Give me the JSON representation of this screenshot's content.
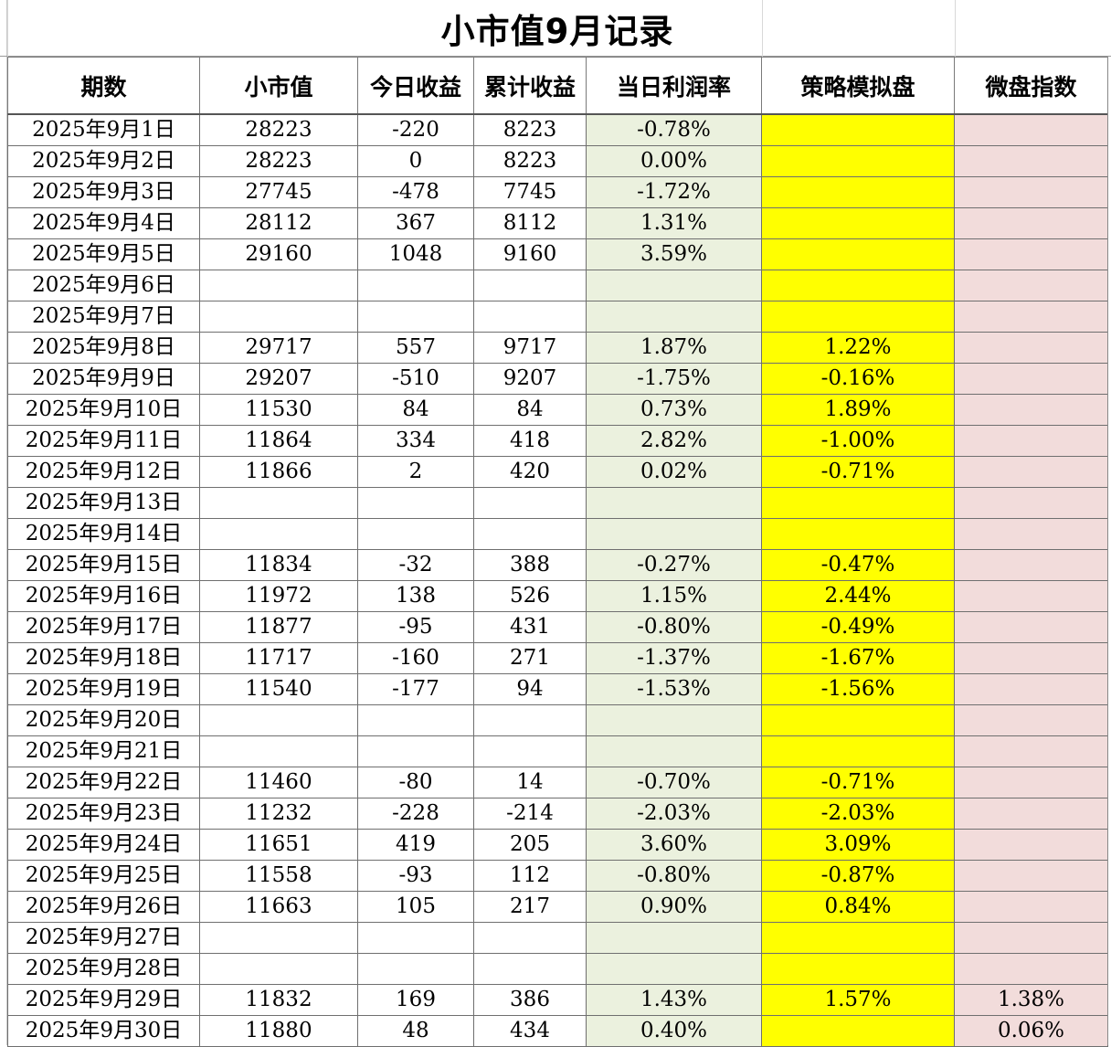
{
  "title": "小市值9月记录",
  "columns": [
    "期数",
    "小市值",
    "今日收益",
    "累计收益",
    "当日利润率",
    "策略模拟盘",
    "微盘指数"
  ],
  "rows": [
    [
      "2025年9月1日",
      "28223",
      "-220",
      "8223",
      "-0.78%",
      "",
      ""
    ],
    [
      "2025年9月2日",
      "28223",
      "0",
      "8223",
      "0.00%",
      "",
      ""
    ],
    [
      "2025年9月3日",
      "27745",
      "-478",
      "7745",
      "-1.72%",
      "",
      ""
    ],
    [
      "2025年9月4日",
      "28112",
      "367",
      "8112",
      "1.31%",
      "",
      ""
    ],
    [
      "2025年9月5日",
      "29160",
      "1048",
      "9160",
      "3.59%",
      "",
      ""
    ],
    [
      "2025年9月6日",
      "",
      "",
      "",
      "",
      "",
      ""
    ],
    [
      "2025年9月7日",
      "",
      "",
      "",
      "",
      "",
      ""
    ],
    [
      "2025年9月8日",
      "29717",
      "557",
      "9717",
      "1.87%",
      "1.22%",
      ""
    ],
    [
      "2025年9月9日",
      "29207",
      "-510",
      "9207",
      "-1.75%",
      "-0.16%",
      ""
    ],
    [
      "2025年9月10日",
      "11530",
      "84",
      "84",
      "0.73%",
      "1.89%",
      ""
    ],
    [
      "2025年9月11日",
      "11864",
      "334",
      "418",
      "2.82%",
      "-1.00%",
      ""
    ],
    [
      "2025年9月12日",
      "11866",
      "2",
      "420",
      "0.02%",
      "-0.71%",
      ""
    ],
    [
      "2025年9月13日",
      "",
      "",
      "",
      "",
      "",
      ""
    ],
    [
      "2025年9月14日",
      "",
      "",
      "",
      "",
      "",
      ""
    ],
    [
      "2025年9月15日",
      "11834",
      "-32",
      "388",
      "-0.27%",
      "-0.47%",
      ""
    ],
    [
      "2025年9月16日",
      "11972",
      "138",
      "526",
      "1.15%",
      "2.44%",
      ""
    ],
    [
      "2025年9月17日",
      "11877",
      "-95",
      "431",
      "-0.80%",
      "-0.49%",
      ""
    ],
    [
      "2025年9月18日",
      "11717",
      "-160",
      "271",
      "-1.37%",
      "-1.67%",
      ""
    ],
    [
      "2025年9月19日",
      "11540",
      "-177",
      "94",
      "-1.53%",
      "-1.56%",
      ""
    ],
    [
      "2025年9月20日",
      "",
      "",
      "",
      "",
      "",
      ""
    ],
    [
      "2025年9月21日",
      "",
      "",
      "",
      "",
      "",
      ""
    ],
    [
      "2025年9月22日",
      "11460",
      "-80",
      "14",
      "-0.70%",
      "-0.71%",
      ""
    ],
    [
      "2025年9月23日",
      "11232",
      "-228",
      "-214",
      "-2.03%",
      "-2.03%",
      ""
    ],
    [
      "2025年9月24日",
      "11651",
      "419",
      "205",
      "3.60%",
      "3.09%",
      ""
    ],
    [
      "2025年9月25日",
      "11558",
      "-93",
      "112",
      "-0.80%",
      "-0.87%",
      ""
    ],
    [
      "2025年9月26日",
      "11663",
      "105",
      "217",
      "0.90%",
      "0.84%",
      ""
    ],
    [
      "2025年9月27日",
      "",
      "",
      "",
      "",
      "",
      ""
    ],
    [
      "2025年9月28日",
      "",
      "",
      "",
      "",
      "",
      ""
    ],
    [
      "2025年9月29日",
      "11832",
      "169",
      "386",
      "1.43%",
      "1.57%",
      "1.38%"
    ],
    [
      "2025年9月30日",
      "11880",
      "48",
      "434",
      "0.40%",
      "",
      "0.06%"
    ]
  ],
  "colors": {
    "rate_fill": "#ebf1de",
    "sim_fill": "#ffff00",
    "micro_fill": "#f2dcdb",
    "grid": "#6f6f6f"
  }
}
